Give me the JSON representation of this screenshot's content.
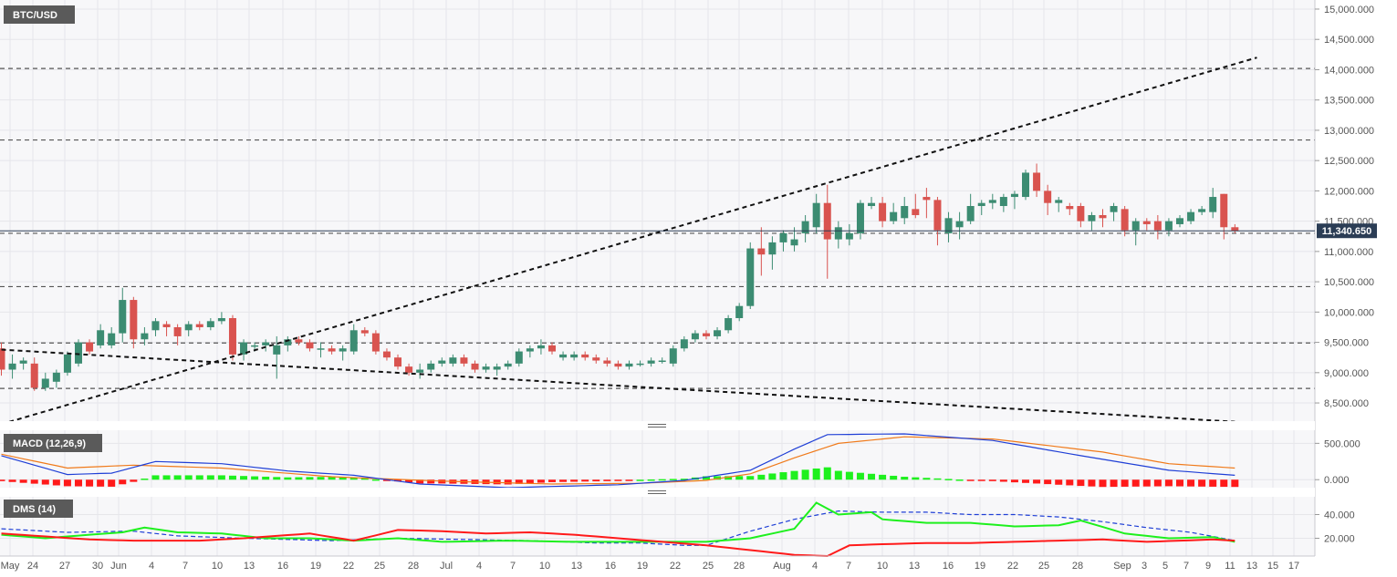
{
  "colors": {
    "background": "#f7f7f9",
    "grid": "#e6e6ea",
    "bull": "#3c8c72",
    "bear": "#d9534f",
    "macd_line": "#1f3fd6",
    "signal_line": "#f07a1a",
    "hist_positive": "#1ef01e",
    "hist_negative": "#ff1a1a",
    "dms_plus": "#1ef01e",
    "dms_minus": "#ff1a1a",
    "adx": "#1f3fd6",
    "price_tag": "#2b3d55",
    "panel_label_bg": "#5a5a5a"
  },
  "labels": {
    "symbol": "BTC/USD",
    "macd": "MACD (12,26,9)",
    "dms": "DMS (14)",
    "last_price": "11,340.650"
  },
  "chart_data": {
    "type": "candlestick",
    "symbol": "BTC/USD",
    "x_labels": [
      "May",
      "24",
      "27",
      "30",
      "Jun",
      "4",
      "7",
      "10",
      "13",
      "16",
      "19",
      "22",
      "25",
      "28",
      "Jul",
      "4",
      "7",
      "10",
      "13",
      "16",
      "19",
      "22",
      "25",
      "28",
      "Aug",
      "4",
      "7",
      "10",
      "13",
      "16",
      "19",
      "22",
      "25",
      "28",
      "Sep",
      "3",
      "5",
      "7",
      "9",
      "11",
      "13",
      "15",
      "17"
    ],
    "price_ylim": [
      8200,
      15150
    ],
    "price_ticks": [
      "15,000.000",
      "14,500.000",
      "14,000.000",
      "13,500.000",
      "13,000.000",
      "12,500.000",
      "12,000.000",
      "11,500.000",
      "11,000.000",
      "10,500.000",
      "10,000.000",
      "9,500.000",
      "9,000.000",
      "8,500.000"
    ],
    "last_price": 11340.65,
    "horizontal_levels": [
      14020,
      12840,
      11300,
      10420,
      9490,
      8740
    ],
    "trendlines": [
      {
        "from": [
          0,
          8150
        ],
        "to": [
          114,
          14200
        ]
      },
      {
        "from": [
          0,
          9380
        ],
        "to": [
          112,
          8190
        ]
      }
    ],
    "candles": [
      [
        9400,
        9500,
        8950,
        9050
      ],
      [
        9050,
        9300,
        8900,
        9150
      ],
      [
        9150,
        9250,
        9050,
        9200
      ],
      [
        9150,
        9250,
        8700,
        8750
      ],
      [
        8750,
        9000,
        8700,
        8900
      ],
      [
        8850,
        9050,
        8750,
        9000
      ],
      [
        9000,
        9350,
        8950,
        9300
      ],
      [
        9150,
        9550,
        9100,
        9500
      ],
      [
        9500,
        9550,
        9300,
        9350
      ],
      [
        9450,
        9800,
        9400,
        9700
      ],
      [
        9450,
        9750,
        9400,
        9650
      ],
      [
        9650,
        10400,
        9500,
        10200
      ],
      [
        10200,
        10250,
        9400,
        9550
      ],
      [
        9550,
        9750,
        9450,
        9650
      ],
      [
        9700,
        9900,
        9600,
        9850
      ],
      [
        9800,
        9850,
        9600,
        9750
      ],
      [
        9750,
        9800,
        9450,
        9600
      ],
      [
        9700,
        9850,
        9600,
        9800
      ],
      [
        9800,
        9850,
        9700,
        9750
      ],
      [
        9750,
        9900,
        9700,
        9850
      ],
      [
        9850,
        10000,
        9800,
        9900
      ],
      [
        9900,
        9950,
        9200,
        9300
      ],
      [
        9300,
        9550,
        9200,
        9500
      ],
      [
        9450,
        9500,
        9350,
        9450
      ],
      [
        9450,
        9550,
        9350,
        9500
      ],
      [
        9300,
        9600,
        8900,
        9450
      ],
      [
        9450,
        9600,
        9350,
        9550
      ],
      [
        9550,
        9600,
        9450,
        9500
      ],
      [
        9500,
        9550,
        9350,
        9400
      ],
      [
        9400,
        9500,
        9250,
        9400
      ],
      [
        9400,
        9450,
        9300,
        9350
      ],
      [
        9350,
        9450,
        9200,
        9400
      ],
      [
        9350,
        9800,
        9300,
        9700
      ],
      [
        9700,
        9750,
        9600,
        9650
      ],
      [
        9650,
        9700,
        9300,
        9350
      ],
      [
        9350,
        9400,
        9200,
        9250
      ],
      [
        9250,
        9300,
        9050,
        9100
      ],
      [
        9100,
        9150,
        8950,
        9000
      ],
      [
        9000,
        9150,
        8900,
        9050
      ],
      [
        9050,
        9200,
        9000,
        9150
      ],
      [
        9150,
        9250,
        9100,
        9200
      ],
      [
        9150,
        9300,
        9100,
        9250
      ],
      [
        9250,
        9300,
        9100,
        9150
      ],
      [
        9150,
        9200,
        9000,
        9050
      ],
      [
        9050,
        9150,
        9000,
        9100
      ],
      [
        9050,
        9150,
        8950,
        9100
      ],
      [
        9100,
        9200,
        9050,
        9150
      ],
      [
        9150,
        9400,
        9100,
        9350
      ],
      [
        9350,
        9450,
        9250,
        9400
      ],
      [
        9400,
        9550,
        9300,
        9450
      ],
      [
        9450,
        9500,
        9300,
        9350
      ],
      [
        9250,
        9350,
        9200,
        9300
      ],
      [
        9250,
        9350,
        9200,
        9300
      ],
      [
        9300,
        9350,
        9200,
        9250
      ],
      [
        9250,
        9300,
        9150,
        9200
      ],
      [
        9200,
        9250,
        9100,
        9150
      ],
      [
        9150,
        9200,
        9050,
        9100
      ],
      [
        9100,
        9200,
        9050,
        9150
      ],
      [
        9150,
        9200,
        9100,
        9150
      ],
      [
        9150,
        9250,
        9100,
        9200
      ],
      [
        9200,
        9250,
        9150,
        9200
      ],
      [
        9150,
        9450,
        9100,
        9400
      ],
      [
        9400,
        9600,
        9350,
        9550
      ],
      [
        9550,
        9700,
        9500,
        9650
      ],
      [
        9650,
        9700,
        9550,
        9600
      ],
      [
        9600,
        9750,
        9550,
        9700
      ],
      [
        9700,
        9950,
        9650,
        9900
      ],
      [
        9900,
        10150,
        9850,
        10100
      ],
      [
        10100,
        11150,
        10050,
        11050
      ],
      [
        11050,
        11400,
        10600,
        10950
      ],
      [
        10950,
        11250,
        10700,
        11150
      ],
      [
        11150,
        11350,
        11000,
        11300
      ],
      [
        11100,
        11400,
        11000,
        11200
      ],
      [
        11300,
        11600,
        11150,
        11500
      ],
      [
        11400,
        11950,
        11300,
        11800
      ],
      [
        11800,
        12100,
        10550,
        11200
      ],
      [
        11200,
        11500,
        11050,
        11400
      ],
      [
        11200,
        11450,
        11100,
        11300
      ],
      [
        11300,
        11850,
        11200,
        11800
      ],
      [
        11750,
        11900,
        11700,
        11800
      ],
      [
        11800,
        11900,
        11400,
        11500
      ],
      [
        11500,
        11800,
        11450,
        11650
      ],
      [
        11550,
        11900,
        11450,
        11750
      ],
      [
        11700,
        11950,
        11550,
        11600
      ],
      [
        11900,
        12050,
        11550,
        11850
      ],
      [
        11850,
        11900,
        11100,
        11350
      ],
      [
        11300,
        11650,
        11150,
        11550
      ],
      [
        11400,
        11650,
        11200,
        11500
      ],
      [
        11500,
        11950,
        11450,
        11750
      ],
      [
        11750,
        11850,
        11600,
        11800
      ],
      [
        11800,
        11950,
        11700,
        11850
      ],
      [
        11750,
        11950,
        11650,
        11900
      ],
      [
        11900,
        12000,
        11700,
        11950
      ],
      [
        11900,
        12350,
        11850,
        12300
      ],
      [
        12300,
        12450,
        11900,
        12000
      ],
      [
        12000,
        12100,
        11600,
        11800
      ],
      [
        11800,
        11900,
        11650,
        11850
      ],
      [
        11750,
        11800,
        11600,
        11700
      ],
      [
        11750,
        11800,
        11400,
        11500
      ],
      [
        11500,
        11650,
        11350,
        11600
      ],
      [
        11600,
        11700,
        11400,
        11550
      ],
      [
        11650,
        11800,
        11500,
        11750
      ],
      [
        11700,
        11750,
        11250,
        11350
      ],
      [
        11350,
        11550,
        11100,
        11500
      ],
      [
        11500,
        11550,
        11350,
        11450
      ],
      [
        11500,
        11600,
        11200,
        11350
      ],
      [
        11350,
        11550,
        11250,
        11500
      ],
      [
        11450,
        11600,
        11400,
        11550
      ],
      [
        11500,
        11700,
        11450,
        11650
      ],
      [
        11650,
        11750,
        11600,
        11700
      ],
      [
        11650,
        12050,
        11550,
        11900
      ],
      [
        11950,
        11950,
        11200,
        11400
      ],
      [
        11400,
        11450,
        11300,
        11340.65
      ]
    ],
    "macd": {
      "label": "MACD (12,26,9)",
      "ylim": [
        -110,
        680
      ],
      "ticks": [
        "500.000",
        "0.000"
      ],
      "macd_keys": [
        [
          0,
          330
        ],
        [
          6,
          70
        ],
        [
          10,
          90
        ],
        [
          14,
          250
        ],
        [
          20,
          220
        ],
        [
          26,
          120
        ],
        [
          32,
          60
        ],
        [
          38,
          -60
        ],
        [
          46,
          -110
        ],
        [
          56,
          -70
        ],
        [
          62,
          -10
        ],
        [
          68,
          130
        ],
        [
          72,
          420
        ],
        [
          75,
          620
        ],
        [
          82,
          630
        ],
        [
          90,
          540
        ],
        [
          98,
          330
        ],
        [
          106,
          130
        ],
        [
          112,
          60
        ]
      ],
      "signal_keys": [
        [
          0,
          350
        ],
        [
          6,
          160
        ],
        [
          12,
          200
        ],
        [
          20,
          160
        ],
        [
          30,
          40
        ],
        [
          40,
          -20
        ],
        [
          50,
          -60
        ],
        [
          58,
          -50
        ],
        [
          64,
          -10
        ],
        [
          68,
          80
        ],
        [
          72,
          300
        ],
        [
          76,
          500
        ],
        [
          82,
          590
        ],
        [
          90,
          560
        ],
        [
          100,
          380
        ],
        [
          106,
          220
        ],
        [
          112,
          160
        ]
      ]
    },
    "dms": {
      "label": "DMS (14)",
      "ylim": [
        5,
        55
      ],
      "ticks": [
        "40.000",
        "20.000"
      ],
      "plus_keys": [
        [
          0,
          23
        ],
        [
          4,
          20
        ],
        [
          8,
          23
        ],
        [
          11,
          25
        ],
        [
          13,
          29
        ],
        [
          16,
          25
        ],
        [
          20,
          24
        ],
        [
          24,
          20
        ],
        [
          28,
          20
        ],
        [
          32,
          18
        ],
        [
          36,
          20
        ],
        [
          40,
          17
        ],
        [
          46,
          18
        ],
        [
          52,
          17
        ],
        [
          58,
          17
        ],
        [
          64,
          17
        ],
        [
          68,
          20
        ],
        [
          72,
          28
        ],
        [
          74,
          50
        ],
        [
          76,
          40
        ],
        [
          79,
          42
        ],
        [
          80,
          36
        ],
        [
          84,
          33
        ],
        [
          88,
          33
        ],
        [
          92,
          30
        ],
        [
          96,
          31
        ],
        [
          98,
          35
        ],
        [
          102,
          24
        ],
        [
          106,
          20
        ],
        [
          110,
          21
        ],
        [
          112,
          17
        ]
      ],
      "minus_keys": [
        [
          0,
          24
        ],
        [
          8,
          19
        ],
        [
          12,
          18
        ],
        [
          18,
          18
        ],
        [
          22,
          20
        ],
        [
          28,
          24
        ],
        [
          32,
          18
        ],
        [
          36,
          27
        ],
        [
          40,
          26
        ],
        [
          44,
          24
        ],
        [
          48,
          25
        ],
        [
          52,
          23
        ],
        [
          56,
          20
        ],
        [
          60,
          17
        ],
        [
          64,
          14
        ],
        [
          68,
          10
        ],
        [
          72,
          6
        ],
        [
          75,
          5
        ],
        [
          77,
          14
        ],
        [
          80,
          15
        ],
        [
          84,
          16
        ],
        [
          88,
          16
        ],
        [
          92,
          17
        ],
        [
          96,
          18
        ],
        [
          100,
          19
        ],
        [
          104,
          17
        ],
        [
          110,
          19
        ],
        [
          112,
          18
        ]
      ],
      "adx_keys": [
        [
          0,
          28
        ],
        [
          6,
          25
        ],
        [
          12,
          26
        ],
        [
          16,
          22
        ],
        [
          22,
          20
        ],
        [
          30,
          18
        ],
        [
          36,
          20
        ],
        [
          42,
          19
        ],
        [
          48,
          18
        ],
        [
          54,
          16
        ],
        [
          58,
          16
        ],
        [
          62,
          14
        ],
        [
          64,
          14
        ],
        [
          66,
          20
        ],
        [
          68,
          26
        ],
        [
          72,
          36
        ],
        [
          76,
          43
        ],
        [
          80,
          42
        ],
        [
          84,
          42
        ],
        [
          88,
          40
        ],
        [
          92,
          40
        ],
        [
          96,
          38
        ],
        [
          100,
          34
        ],
        [
          104,
          29
        ],
        [
          108,
          25
        ],
        [
          112,
          18
        ]
      ]
    }
  }
}
